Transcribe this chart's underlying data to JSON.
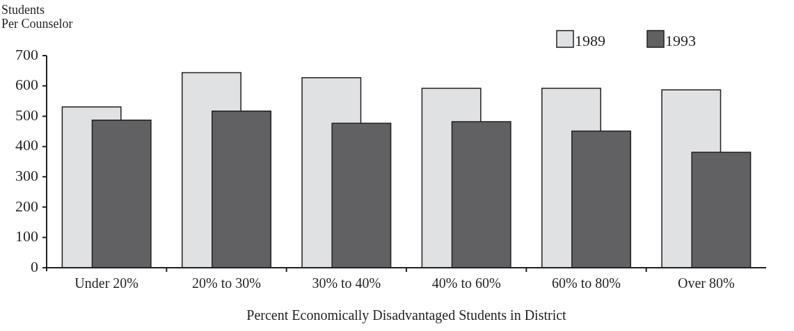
{
  "chart_data": {
    "type": "bar",
    "ylabel": "Students\nPer Counselor",
    "xlabel": "Percent Economically Disadvantaged Students in District",
    "categories": [
      "Under 20%",
      "20% to 30%",
      "30% to 40%",
      "40% to 60%",
      "60% to 80%",
      "Over 80%"
    ],
    "series": [
      {
        "name": "1989",
        "color": "#e0e1e3",
        "values": [
          531,
          644,
          627,
          592,
          592,
          587
        ]
      },
      {
        "name": "1993",
        "color": "#616163",
        "values": [
          487,
          517,
          477,
          482,
          451,
          381
        ]
      }
    ],
    "ylim": [
      0,
      700
    ],
    "yticks": [
      0,
      100,
      200,
      300,
      400,
      500,
      600,
      700
    ],
    "grid": false,
    "legend": "top right"
  }
}
